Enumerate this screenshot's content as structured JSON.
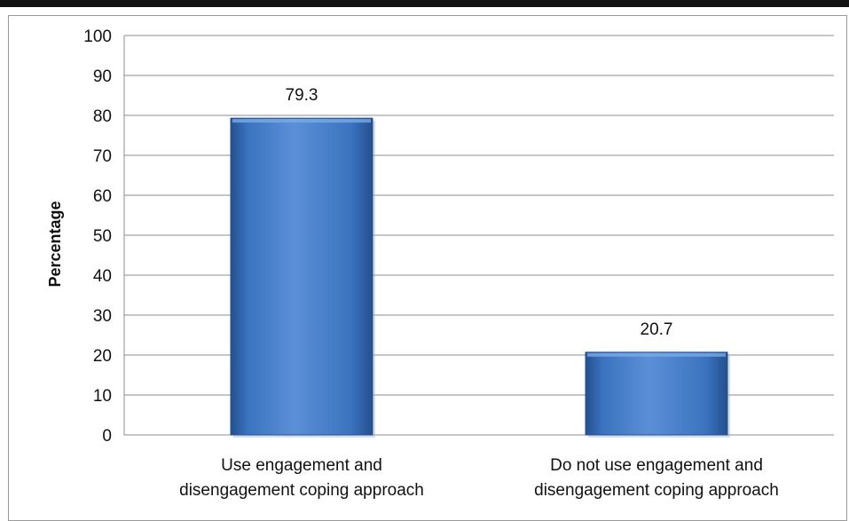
{
  "chart_data": {
    "type": "bar",
    "title": "",
    "xlabel": "",
    "ylabel": "Percentage",
    "ylim": [
      0,
      100
    ],
    "ytick_step": 10,
    "grid": true,
    "legend": "none",
    "categories": [
      [
        "Use engagement and",
        "disengagement coping approach"
      ],
      [
        "Do not use engagement and",
        "disengagement  coping approach"
      ]
    ],
    "values": [
      79.3,
      20.7
    ],
    "data_labels": [
      "79.3",
      "20.7"
    ],
    "colors": {
      "bar_fill": "#3a73c0",
      "bar_highlight": "#7aaae6",
      "bar_shadow": "#24508f",
      "gridline": "#8c8c8c",
      "text": "#111111"
    }
  }
}
